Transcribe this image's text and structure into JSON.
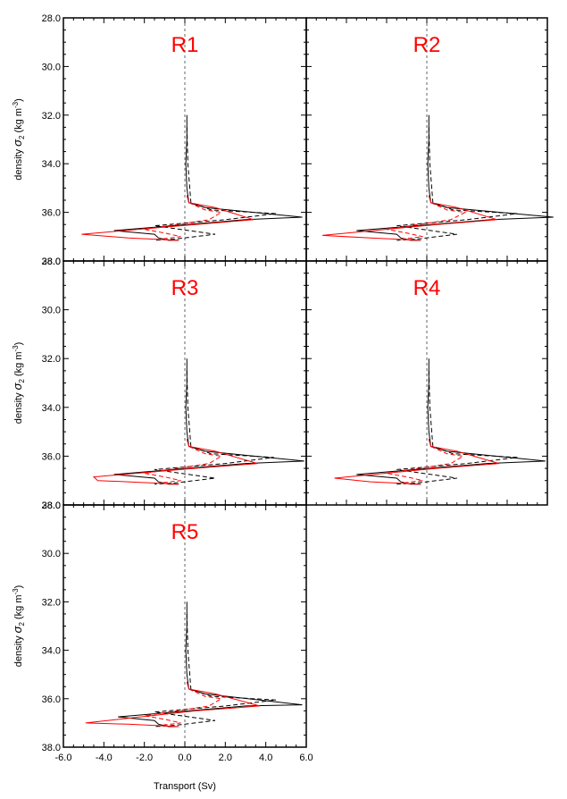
{
  "figure": {
    "xlabel": "Transport (Sv)",
    "ylabel_prefix": "density ",
    "ylabel_symbol": "σ",
    "ylabel_subscript": "2",
    "ylabel_units_open": " (kg m",
    "ylabel_units_sup": "-3",
    "ylabel_units_close": ")",
    "x_tick_labels": [
      "-6.0",
      "-4.0",
      "-2.0",
      "0.0",
      "2.0",
      "4.0",
      "6.0"
    ],
    "y_tick_labels": [
      "28.0",
      "30.0",
      "32.0",
      "34.0",
      "36.0",
      "38.0"
    ],
    "colors": {
      "black": "#000000",
      "red": "#ff0000",
      "title": "#ff0000"
    }
  },
  "chart_data": [
    {
      "type": "line",
      "title": "R1",
      "xlim": [
        -6,
        6
      ],
      "ylim": [
        28,
        38
      ],
      "y_inverted": true,
      "series": [
        {
          "color": "black",
          "style": "solid",
          "points": [
            [
              0.1,
              32
            ],
            [
              0.1,
              33
            ],
            [
              0.05,
              34
            ],
            [
              0.1,
              35
            ],
            [
              0.2,
              35.6
            ],
            [
              1.0,
              35.8
            ],
            [
              5.8,
              36.2
            ],
            [
              3.0,
              36.3
            ],
            [
              -3.5,
              36.75
            ],
            [
              -1.5,
              36.9
            ],
            [
              -1.3,
              37.05
            ],
            [
              -0.8,
              37.15
            ],
            [
              -0.3,
              37.15
            ]
          ]
        },
        {
          "color": "black",
          "style": "dashed",
          "points": [
            [
              0.1,
              32.5
            ],
            [
              0.15,
              34
            ],
            [
              0.3,
              35.6
            ],
            [
              1.3,
              35.9
            ],
            [
              4.5,
              36.05
            ],
            [
              2.0,
              36.3
            ],
            [
              -1.5,
              36.55
            ],
            [
              1.5,
              36.9
            ],
            [
              -0.5,
              37.1
            ],
            [
              -1.5,
              37.15
            ]
          ]
        },
        {
          "color": "red",
          "style": "solid",
          "points": [
            [
              0.1,
              35.3
            ],
            [
              0.2,
              35.6
            ],
            [
              1.5,
              35.8
            ],
            [
              3.4,
              36.3
            ],
            [
              0.5,
              36.5
            ],
            [
              -5.1,
              36.9
            ],
            [
              -2.8,
              37.05
            ],
            [
              -0.3,
              37.15
            ]
          ]
        },
        {
          "color": "red",
          "style": "dashed",
          "points": [
            [
              0.2,
              35.6
            ],
            [
              1.0,
              35.9
            ],
            [
              1.8,
              36.0
            ],
            [
              1.2,
              36.3
            ],
            [
              -2.0,
              36.7
            ],
            [
              -1.0,
              36.85
            ],
            [
              -0.2,
              37.0
            ],
            [
              -1.2,
              37.1
            ]
          ]
        }
      ]
    },
    {
      "type": "line",
      "title": "R2",
      "xlim": [
        -6,
        6
      ],
      "ylim": [
        28,
        38
      ],
      "y_inverted": true,
      "series": [
        {
          "color": "black",
          "style": "solid",
          "points": [
            [
              0.1,
              32
            ],
            [
              0.1,
              33
            ],
            [
              0.05,
              34
            ],
            [
              0.1,
              35
            ],
            [
              0.2,
              35.6
            ],
            [
              1.0,
              35.8
            ],
            [
              6.3,
              36.2
            ],
            [
              3.2,
              36.3
            ],
            [
              -3.5,
              36.75
            ],
            [
              -1.5,
              36.9
            ],
            [
              -1.3,
              37.05
            ],
            [
              -0.8,
              37.15
            ],
            [
              -0.3,
              37.15
            ]
          ]
        },
        {
          "color": "black",
          "style": "dashed",
          "points": [
            [
              0.1,
              32.5
            ],
            [
              0.15,
              34
            ],
            [
              0.3,
              35.6
            ],
            [
              1.3,
              35.9
            ],
            [
              4.5,
              36.05
            ],
            [
              2.0,
              36.3
            ],
            [
              -1.5,
              36.55
            ],
            [
              1.5,
              36.9
            ],
            [
              -0.5,
              37.1
            ],
            [
              -1.5,
              37.15
            ]
          ]
        },
        {
          "color": "red",
          "style": "solid",
          "points": [
            [
              0.1,
              35.3
            ],
            [
              0.2,
              35.6
            ],
            [
              1.5,
              35.8
            ],
            [
              3.5,
              36.3
            ],
            [
              0.5,
              36.5
            ],
            [
              -5.2,
              36.95
            ],
            [
              -2.8,
              37.05
            ],
            [
              -0.3,
              37.15
            ]
          ]
        },
        {
          "color": "red",
          "style": "dashed",
          "points": [
            [
              0.2,
              35.6
            ],
            [
              1.0,
              35.9
            ],
            [
              1.9,
              36.0
            ],
            [
              1.2,
              36.3
            ],
            [
              -2.0,
              36.7
            ],
            [
              -1.0,
              36.85
            ],
            [
              -0.2,
              37.0
            ],
            [
              -1.2,
              37.1
            ]
          ]
        }
      ]
    },
    {
      "type": "line",
      "title": "R3",
      "xlim": [
        -6,
        6
      ],
      "ylim": [
        28,
        38
      ],
      "y_inverted": true,
      "series": [
        {
          "color": "black",
          "style": "solid",
          "points": [
            [
              0.1,
              32
            ],
            [
              0.1,
              33
            ],
            [
              0.05,
              34
            ],
            [
              0.1,
              35
            ],
            [
              0.2,
              35.6
            ],
            [
              1.0,
              35.8
            ],
            [
              5.9,
              36.2
            ],
            [
              3.0,
              36.3
            ],
            [
              -3.5,
              36.75
            ],
            [
              -1.5,
              36.9
            ],
            [
              -1.3,
              37.05
            ],
            [
              -0.8,
              37.15
            ],
            [
              -0.3,
              37.15
            ]
          ]
        },
        {
          "color": "black",
          "style": "dashed",
          "points": [
            [
              0.1,
              32.5
            ],
            [
              0.15,
              34
            ],
            [
              0.3,
              35.6
            ],
            [
              1.3,
              35.9
            ],
            [
              4.4,
              36.05
            ],
            [
              2.0,
              36.3
            ],
            [
              -1.5,
              36.55
            ],
            [
              1.5,
              36.9
            ],
            [
              -0.5,
              37.1
            ],
            [
              -1.5,
              37.15
            ]
          ]
        },
        {
          "color": "red",
          "style": "solid",
          "points": [
            [
              0.1,
              35.3
            ],
            [
              0.2,
              35.6
            ],
            [
              1.5,
              35.8
            ],
            [
              3.6,
              36.3
            ],
            [
              0.5,
              36.5
            ],
            [
              -4.5,
              36.85
            ],
            [
              -4.3,
              37.0
            ],
            [
              -2.8,
              37.05
            ],
            [
              -0.3,
              37.15
            ]
          ]
        },
        {
          "color": "red",
          "style": "dashed",
          "points": [
            [
              0.2,
              35.6
            ],
            [
              1.0,
              35.9
            ],
            [
              1.8,
              36.0
            ],
            [
              1.2,
              36.3
            ],
            [
              -2.0,
              36.7
            ],
            [
              -1.0,
              36.85
            ],
            [
              -0.2,
              37.0
            ],
            [
              -1.2,
              37.1
            ]
          ]
        }
      ]
    },
    {
      "type": "line",
      "title": "R4",
      "xlim": [
        -6,
        6
      ],
      "ylim": [
        28,
        38
      ],
      "y_inverted": true,
      "series": [
        {
          "color": "black",
          "style": "solid",
          "points": [
            [
              0.1,
              32
            ],
            [
              0.1,
              33
            ],
            [
              0.05,
              34
            ],
            [
              0.1,
              35
            ],
            [
              0.2,
              35.6
            ],
            [
              1.0,
              35.8
            ],
            [
              5.9,
              36.2
            ],
            [
              3.0,
              36.3
            ],
            [
              -3.5,
              36.75
            ],
            [
              -1.5,
              36.9
            ],
            [
              -1.3,
              37.05
            ],
            [
              -0.8,
              37.15
            ],
            [
              -0.3,
              37.15
            ]
          ]
        },
        {
          "color": "black",
          "style": "dashed",
          "points": [
            [
              0.1,
              32.5
            ],
            [
              0.15,
              34
            ],
            [
              0.3,
              35.6
            ],
            [
              1.3,
              35.9
            ],
            [
              4.5,
              36.05
            ],
            [
              2.0,
              36.3
            ],
            [
              -1.5,
              36.55
            ],
            [
              1.5,
              36.9
            ],
            [
              -0.5,
              37.1
            ],
            [
              -1.5,
              37.15
            ]
          ]
        },
        {
          "color": "red",
          "style": "solid",
          "points": [
            [
              0.1,
              35.3
            ],
            [
              0.2,
              35.6
            ],
            [
              1.5,
              35.8
            ],
            [
              3.6,
              36.3
            ],
            [
              0.5,
              36.5
            ],
            [
              -4.6,
              36.9
            ],
            [
              -2.8,
              37.05
            ],
            [
              -0.3,
              37.15
            ]
          ]
        },
        {
          "color": "red",
          "style": "dashed",
          "points": [
            [
              0.2,
              35.6
            ],
            [
              1.0,
              35.9
            ],
            [
              1.8,
              36.0
            ],
            [
              1.2,
              36.3
            ],
            [
              -2.0,
              36.7
            ],
            [
              -1.0,
              36.85
            ],
            [
              -0.2,
              37.0
            ],
            [
              -1.2,
              37.1
            ]
          ]
        }
      ]
    },
    {
      "type": "line",
      "title": "R5",
      "xlim": [
        -6,
        6
      ],
      "ylim": [
        28,
        38
      ],
      "y_inverted": true,
      "series": [
        {
          "color": "black",
          "style": "solid",
          "points": [
            [
              0.1,
              32
            ],
            [
              0.1,
              33
            ],
            [
              0.05,
              34
            ],
            [
              0.1,
              35
            ],
            [
              0.2,
              35.6
            ],
            [
              1.0,
              35.8
            ],
            [
              5.8,
              36.25
            ],
            [
              3.0,
              36.3
            ],
            [
              -3.3,
              36.75
            ],
            [
              -1.5,
              36.9
            ],
            [
              -1.3,
              37.05
            ],
            [
              -0.8,
              37.15
            ],
            [
              -0.3,
              37.15
            ]
          ]
        },
        {
          "color": "black",
          "style": "dashed",
          "points": [
            [
              0.1,
              32.5
            ],
            [
              0.15,
              34
            ],
            [
              0.3,
              35.6
            ],
            [
              1.3,
              35.9
            ],
            [
              4.5,
              36.05
            ],
            [
              2.0,
              36.3
            ],
            [
              -1.5,
              36.55
            ],
            [
              1.5,
              36.9
            ],
            [
              -0.5,
              37.1
            ],
            [
              -1.5,
              37.15
            ]
          ]
        },
        {
          "color": "red",
          "style": "solid",
          "points": [
            [
              0.1,
              35.3
            ],
            [
              0.2,
              35.6
            ],
            [
              1.5,
              35.8
            ],
            [
              3.7,
              36.3
            ],
            [
              0.5,
              36.5
            ],
            [
              -4.9,
              37.0
            ],
            [
              -2.8,
              37.05
            ],
            [
              -0.3,
              37.15
            ]
          ]
        },
        {
          "color": "red",
          "style": "dashed",
          "points": [
            [
              0.2,
              35.6
            ],
            [
              1.0,
              35.9
            ],
            [
              1.8,
              36.0
            ],
            [
              1.2,
              36.3
            ],
            [
              -2.0,
              36.7
            ],
            [
              -1.0,
              36.85
            ],
            [
              -0.2,
              37.0
            ],
            [
              -1.2,
              37.1
            ]
          ]
        }
      ]
    }
  ]
}
